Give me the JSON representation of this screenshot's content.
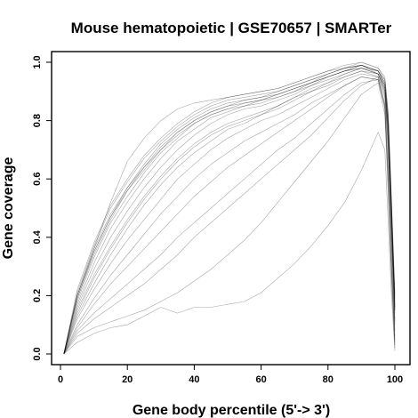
{
  "chart_data": {
    "type": "line",
    "title": "Mouse hematopoietic | GSE70657 | SMARTer",
    "xlabel": "Gene body percentile (5'-> 3')",
    "ylabel": "Gene coverage",
    "xlim": [
      0,
      100
    ],
    "ylim": [
      0,
      1
    ],
    "xticks": [
      0,
      20,
      40,
      60,
      80,
      100
    ],
    "xtick_labels": [
      "0",
      "20",
      "40",
      "60",
      "80",
      "100"
    ],
    "yticks": [
      0.0,
      0.2,
      0.4,
      0.6,
      0.8,
      1.0
    ],
    "ytick_labels": [
      "0.0",
      "0.2",
      "0.4",
      "0.6",
      "0.8",
      "1.0"
    ],
    "grid": false,
    "legend": "none",
    "line_color": "#000000",
    "x": [
      1,
      5,
      10,
      15,
      20,
      25,
      30,
      35,
      40,
      45,
      50,
      55,
      60,
      65,
      70,
      75,
      80,
      85,
      90,
      95,
      97,
      98,
      99,
      100
    ],
    "series": [
      {
        "values": [
          0.0,
          0.2,
          0.36,
          0.48,
          0.57,
          0.65,
          0.72,
          0.77,
          0.81,
          0.84,
          0.86,
          0.87,
          0.88,
          0.9,
          0.92,
          0.94,
          0.96,
          0.98,
          0.99,
          0.97,
          0.93,
          0.8,
          0.5,
          0.18
        ]
      },
      {
        "values": [
          0.0,
          0.19,
          0.34,
          0.46,
          0.56,
          0.63,
          0.7,
          0.76,
          0.8,
          0.83,
          0.85,
          0.86,
          0.87,
          0.89,
          0.91,
          0.93,
          0.95,
          0.97,
          0.99,
          0.97,
          0.92,
          0.78,
          0.48,
          0.16
        ]
      },
      {
        "values": [
          0.0,
          0.21,
          0.37,
          0.5,
          0.59,
          0.67,
          0.73,
          0.78,
          0.82,
          0.85,
          0.87,
          0.88,
          0.89,
          0.9,
          0.92,
          0.94,
          0.96,
          0.98,
          1.0,
          0.98,
          0.94,
          0.82,
          0.52,
          0.2
        ]
      },
      {
        "values": [
          0.0,
          0.18,
          0.33,
          0.45,
          0.54,
          0.62,
          0.69,
          0.74,
          0.79,
          0.82,
          0.84,
          0.85,
          0.87,
          0.88,
          0.9,
          0.93,
          0.95,
          0.97,
          0.98,
          0.96,
          0.91,
          0.77,
          0.47,
          0.15
        ]
      },
      {
        "values": [
          0.0,
          0.2,
          0.35,
          0.47,
          0.57,
          0.64,
          0.71,
          0.76,
          0.8,
          0.83,
          0.85,
          0.87,
          0.88,
          0.89,
          0.91,
          0.93,
          0.96,
          0.98,
          0.99,
          0.97,
          0.93,
          0.79,
          0.49,
          0.17
        ]
      },
      {
        "values": [
          0.0,
          0.22,
          0.38,
          0.51,
          0.6,
          0.68,
          0.74,
          0.79,
          0.83,
          0.86,
          0.88,
          0.89,
          0.9,
          0.91,
          0.93,
          0.95,
          0.97,
          0.99,
          1.0,
          0.98,
          0.95,
          0.83,
          0.53,
          0.21
        ]
      },
      {
        "values": [
          0.0,
          0.19,
          0.35,
          0.47,
          0.56,
          0.64,
          0.7,
          0.75,
          0.79,
          0.82,
          0.84,
          0.86,
          0.87,
          0.89,
          0.91,
          0.93,
          0.95,
          0.97,
          0.99,
          0.96,
          0.92,
          0.78,
          0.48,
          0.16
        ]
      },
      {
        "values": [
          0.0,
          0.17,
          0.31,
          0.43,
          0.52,
          0.6,
          0.67,
          0.73,
          0.77,
          0.81,
          0.83,
          0.85,
          0.86,
          0.88,
          0.9,
          0.92,
          0.95,
          0.97,
          0.98,
          0.96,
          0.91,
          0.76,
          0.46,
          0.14
        ]
      },
      {
        "values": [
          0.0,
          0.15,
          0.27,
          0.37,
          0.46,
          0.54,
          0.61,
          0.67,
          0.72,
          0.76,
          0.79,
          0.81,
          0.83,
          0.85,
          0.88,
          0.9,
          0.93,
          0.95,
          0.97,
          0.96,
          0.9,
          0.74,
          0.44,
          0.12
        ]
      },
      {
        "values": [
          0.0,
          0.13,
          0.24,
          0.34,
          0.43,
          0.51,
          0.58,
          0.64,
          0.69,
          0.73,
          0.77,
          0.79,
          0.82,
          0.84,
          0.87,
          0.9,
          0.92,
          0.95,
          0.97,
          0.95,
          0.89,
          0.72,
          0.42,
          0.1
        ]
      },
      {
        "values": [
          0.0,
          0.12,
          0.22,
          0.31,
          0.39,
          0.46,
          0.53,
          0.6,
          0.65,
          0.7,
          0.74,
          0.77,
          0.8,
          0.82,
          0.85,
          0.88,
          0.91,
          0.94,
          0.96,
          0.95,
          0.88,
          0.7,
          0.4,
          0.08
        ]
      },
      {
        "values": [
          0.0,
          0.1,
          0.19,
          0.27,
          0.34,
          0.41,
          0.48,
          0.54,
          0.6,
          0.65,
          0.69,
          0.73,
          0.76,
          0.79,
          0.82,
          0.86,
          0.89,
          0.92,
          0.95,
          0.94,
          0.86,
          0.66,
          0.36,
          0.06
        ]
      },
      {
        "values": [
          0.0,
          0.09,
          0.17,
          0.24,
          0.3,
          0.36,
          0.42,
          0.48,
          0.54,
          0.59,
          0.64,
          0.68,
          0.72,
          0.76,
          0.8,
          0.84,
          0.88,
          0.92,
          0.95,
          0.94,
          0.85,
          0.62,
          0.32,
          0.05
        ]
      },
      {
        "values": [
          0.0,
          0.08,
          0.14,
          0.19,
          0.24,
          0.29,
          0.34,
          0.4,
          0.45,
          0.5,
          0.55,
          0.6,
          0.65,
          0.7,
          0.74,
          0.79,
          0.84,
          0.89,
          0.93,
          0.94,
          0.84,
          0.6,
          0.3,
          0.04
        ]
      },
      {
        "values": [
          0.0,
          0.07,
          0.12,
          0.16,
          0.2,
          0.24,
          0.29,
          0.34,
          0.4,
          0.45,
          0.5,
          0.55,
          0.6,
          0.65,
          0.7,
          0.75,
          0.81,
          0.87,
          0.92,
          0.95,
          0.85,
          0.58,
          0.28,
          0.03
        ]
      },
      {
        "values": [
          0.0,
          0.06,
          0.09,
          0.11,
          0.13,
          0.15,
          0.18,
          0.21,
          0.25,
          0.29,
          0.34,
          0.39,
          0.45,
          0.52,
          0.59,
          0.66,
          0.73,
          0.81,
          0.89,
          0.93,
          0.82,
          0.55,
          0.25,
          0.02
        ]
      },
      {
        "values": [
          0.0,
          0.04,
          0.07,
          0.09,
          0.1,
          0.13,
          0.16,
          0.14,
          0.16,
          0.16,
          0.17,
          0.18,
          0.21,
          0.26,
          0.31,
          0.37,
          0.44,
          0.52,
          0.63,
          0.76,
          0.7,
          0.45,
          0.2,
          0.01
        ]
      },
      {
        "values": [
          0.0,
          0.16,
          0.29,
          0.4,
          0.49,
          0.57,
          0.64,
          0.7,
          0.75,
          0.79,
          0.82,
          0.84,
          0.85,
          0.87,
          0.89,
          0.92,
          0.94,
          0.96,
          0.98,
          0.97,
          0.92,
          0.77,
          0.47,
          0.15
        ]
      },
      {
        "values": [
          0.0,
          0.2,
          0.36,
          0.52,
          0.66,
          0.74,
          0.8,
          0.84,
          0.86,
          0.87,
          0.88,
          0.89,
          0.9,
          0.91,
          0.93,
          0.95,
          0.97,
          0.98,
          0.99,
          0.97,
          0.94,
          0.81,
          0.51,
          0.19
        ]
      },
      {
        "values": [
          0.0,
          0.14,
          0.26,
          0.36,
          0.45,
          0.53,
          0.6,
          0.66,
          0.71,
          0.75,
          0.78,
          0.8,
          0.82,
          0.85,
          0.88,
          0.91,
          0.93,
          0.96,
          0.98,
          0.96,
          0.9,
          0.73,
          0.43,
          0.11
        ]
      }
    ]
  }
}
